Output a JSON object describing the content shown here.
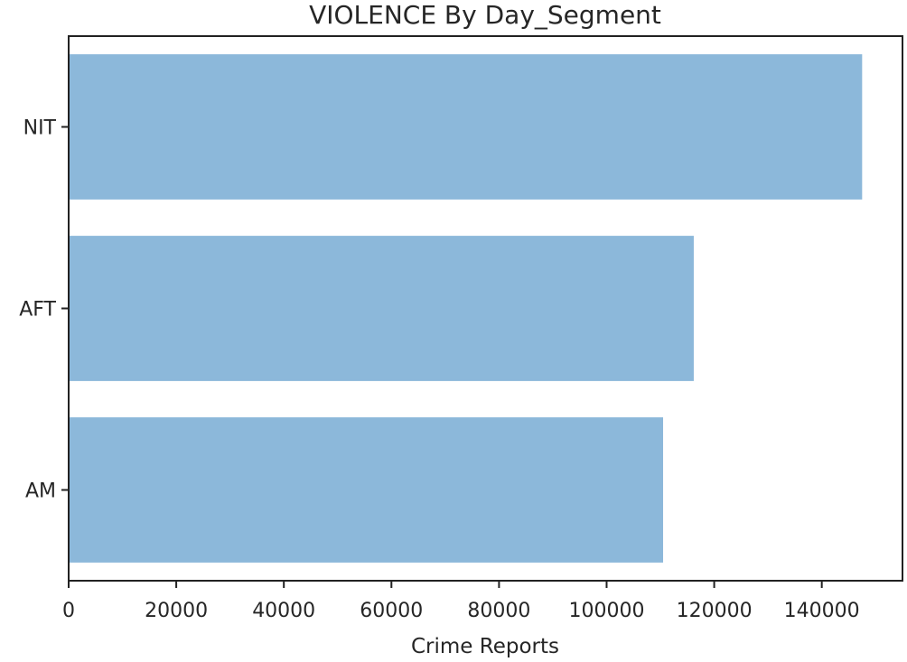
{
  "chart_data": {
    "type": "bar",
    "orientation": "horizontal",
    "title": "VIOLENCE By Day_Segment",
    "xlabel": "Crime Reports",
    "ylabel": "",
    "categories": [
      "AM",
      "AFT",
      "NIT"
    ],
    "values": [
      110500,
      116200,
      147500
    ],
    "xlim": [
      0,
      155000
    ],
    "xticks": [
      0,
      20000,
      40000,
      60000,
      80000,
      100000,
      120000,
      140000
    ],
    "xtick_labels": [
      "0",
      "20000",
      "40000",
      "60000",
      "80000",
      "100000",
      "120000",
      "140000"
    ],
    "grid": false,
    "legend": "none",
    "bar_color": "#8cb8da"
  }
}
